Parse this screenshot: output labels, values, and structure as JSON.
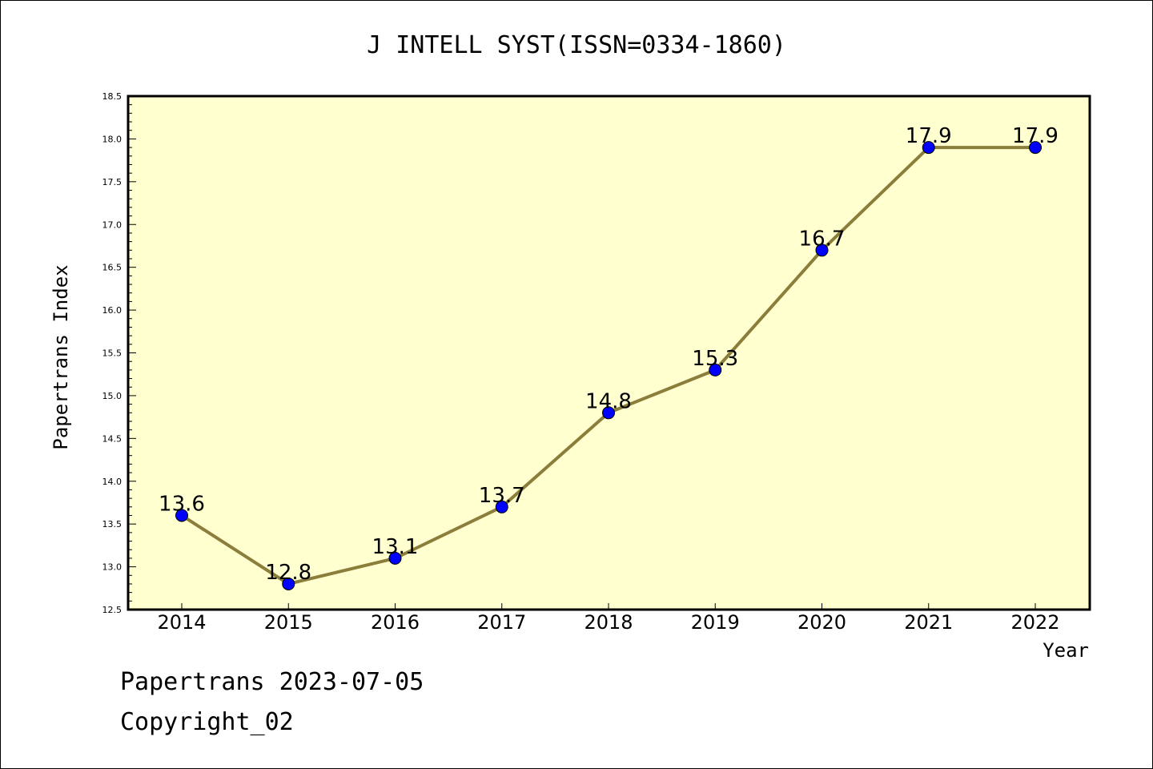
{
  "chart_data": {
    "type": "line",
    "title": "J INTELL SYST(ISSN=0334-1860)",
    "xlabel": "Year",
    "ylabel": "Papertrans Index",
    "categories": [
      "2014",
      "2015",
      "2016",
      "2017",
      "2018",
      "2019",
      "2020",
      "2021",
      "2022"
    ],
    "series": [
      {
        "values": [
          13.6,
          12.8,
          13.1,
          13.7,
          14.8,
          15.3,
          16.7,
          17.9,
          17.9
        ],
        "labels": [
          "13.6",
          "12.8",
          "13.1",
          "13.7",
          "14.8",
          "15.3",
          "16.7",
          "17.9",
          "17.9"
        ]
      }
    ],
    "ylim": [
      12.5,
      18.5
    ],
    "yticks": [
      "12.5",
      "13.0",
      "13.5",
      "14.0",
      "14.5",
      "15.0",
      "15.5",
      "16.0",
      "16.5",
      "17.0",
      "17.5",
      "18.0",
      "18.5"
    ],
    "grid": false,
    "colors": {
      "plot_background": "#ffffd0",
      "line": "#8b7d3a",
      "marker": "#0000ff"
    }
  },
  "footer": {
    "line1": "Papertrans 2023-07-05",
    "line2": "Copyright_02"
  }
}
